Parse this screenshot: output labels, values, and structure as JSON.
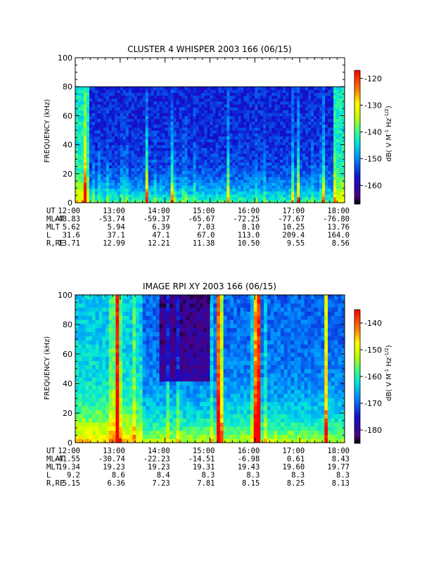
{
  "chart_data": [
    {
      "type": "heatmap",
      "title": "CLUSTER 4 WHISPER 2003 166 (06/15)",
      "ylabel": "FREQUENCY (kHz)",
      "ylim": [
        0,
        100
      ],
      "data_ylim": [
        0,
        80
      ],
      "yticks": [
        "0",
        "20",
        "40",
        "60",
        "80",
        "100"
      ],
      "x_hours": [
        12,
        13,
        14,
        15,
        16,
        17,
        18
      ],
      "colorbar": {
        "label": "dB( V M",
        "sup1": "-1",
        "mid": " Hz",
        "sup2": "-1/2",
        "end": ")",
        "range": [
          -167,
          -117
        ],
        "ticks": [
          "-120",
          "-130",
          "-140",
          "-150",
          "-160"
        ]
      },
      "ephemeris": [
        {
          "label": "UT",
          "values": [
            "12:00",
            "13:00",
            "14:00",
            "15:00",
            "16:00",
            "17:00",
            "18:00"
          ]
        },
        {
          "label": "MLAT",
          "values": [
            "-48.83",
            "-53.74",
            "-59.37",
            "-65.67",
            "-72.25",
            "-77.67",
            "-76.80"
          ]
        },
        {
          "label": "MLT",
          "values": [
            "5.62",
            "5.94",
            "6.39",
            "7.03",
            "8.10",
            "10.25",
            "13.76"
          ]
        },
        {
          "label": "L",
          "values": [
            "31.6",
            "37.1",
            "47.1",
            "67.0",
            "113.0",
            "209.4",
            "164.0"
          ]
        },
        {
          "label": "R,RE",
          "values": [
            "13.71",
            "12.99",
            "12.21",
            "11.38",
            "10.50",
            "9.55",
            "8.56"
          ]
        }
      ]
    },
    {
      "type": "heatmap",
      "title": "IMAGE RPI XY 2003 166 (06/15)",
      "ylabel": "FREQUENCY (kHz)",
      "ylim": [
        0,
        100
      ],
      "data_ylim": [
        0,
        100
      ],
      "yticks": [
        "0",
        "20",
        "40",
        "60",
        "80",
        "100"
      ],
      "x_hours": [
        12,
        13,
        14,
        15,
        16,
        17,
        18
      ],
      "colorbar": {
        "label": "dB( V M",
        "sup1": "-1",
        "mid": " Hz",
        "sup2": "-1/2",
        "end": ")",
        "range": [
          -185,
          -135
        ],
        "ticks": [
          "-140",
          "-150",
          "-160",
          "-170",
          "-180"
        ]
      },
      "ephemeris": [
        {
          "label": "UT",
          "values": [
            "12:00",
            "13:00",
            "14:00",
            "15:00",
            "16:00",
            "17:00",
            "18:00"
          ]
        },
        {
          "label": "MLAT",
          "values": [
            "-41.55",
            "-30.74",
            "-22.23",
            "-14.51",
            "-6.98",
            "0.61",
            "8.43"
          ]
        },
        {
          "label": "MLT",
          "values": [
            "19.34",
            "19.23",
            "19.23",
            "19.31",
            "19.43",
            "19.60",
            "19.77"
          ]
        },
        {
          "label": "L",
          "values": [
            "9.2",
            "8.6",
            "8.4",
            "8.3",
            "8.3",
            "8.3",
            "8.3"
          ]
        },
        {
          "label": "R,RE",
          "values": [
            "5.15",
            "6.36",
            "7.23",
            "7.81",
            "8.15",
            "8.25",
            "8.13"
          ]
        }
      ]
    }
  ]
}
